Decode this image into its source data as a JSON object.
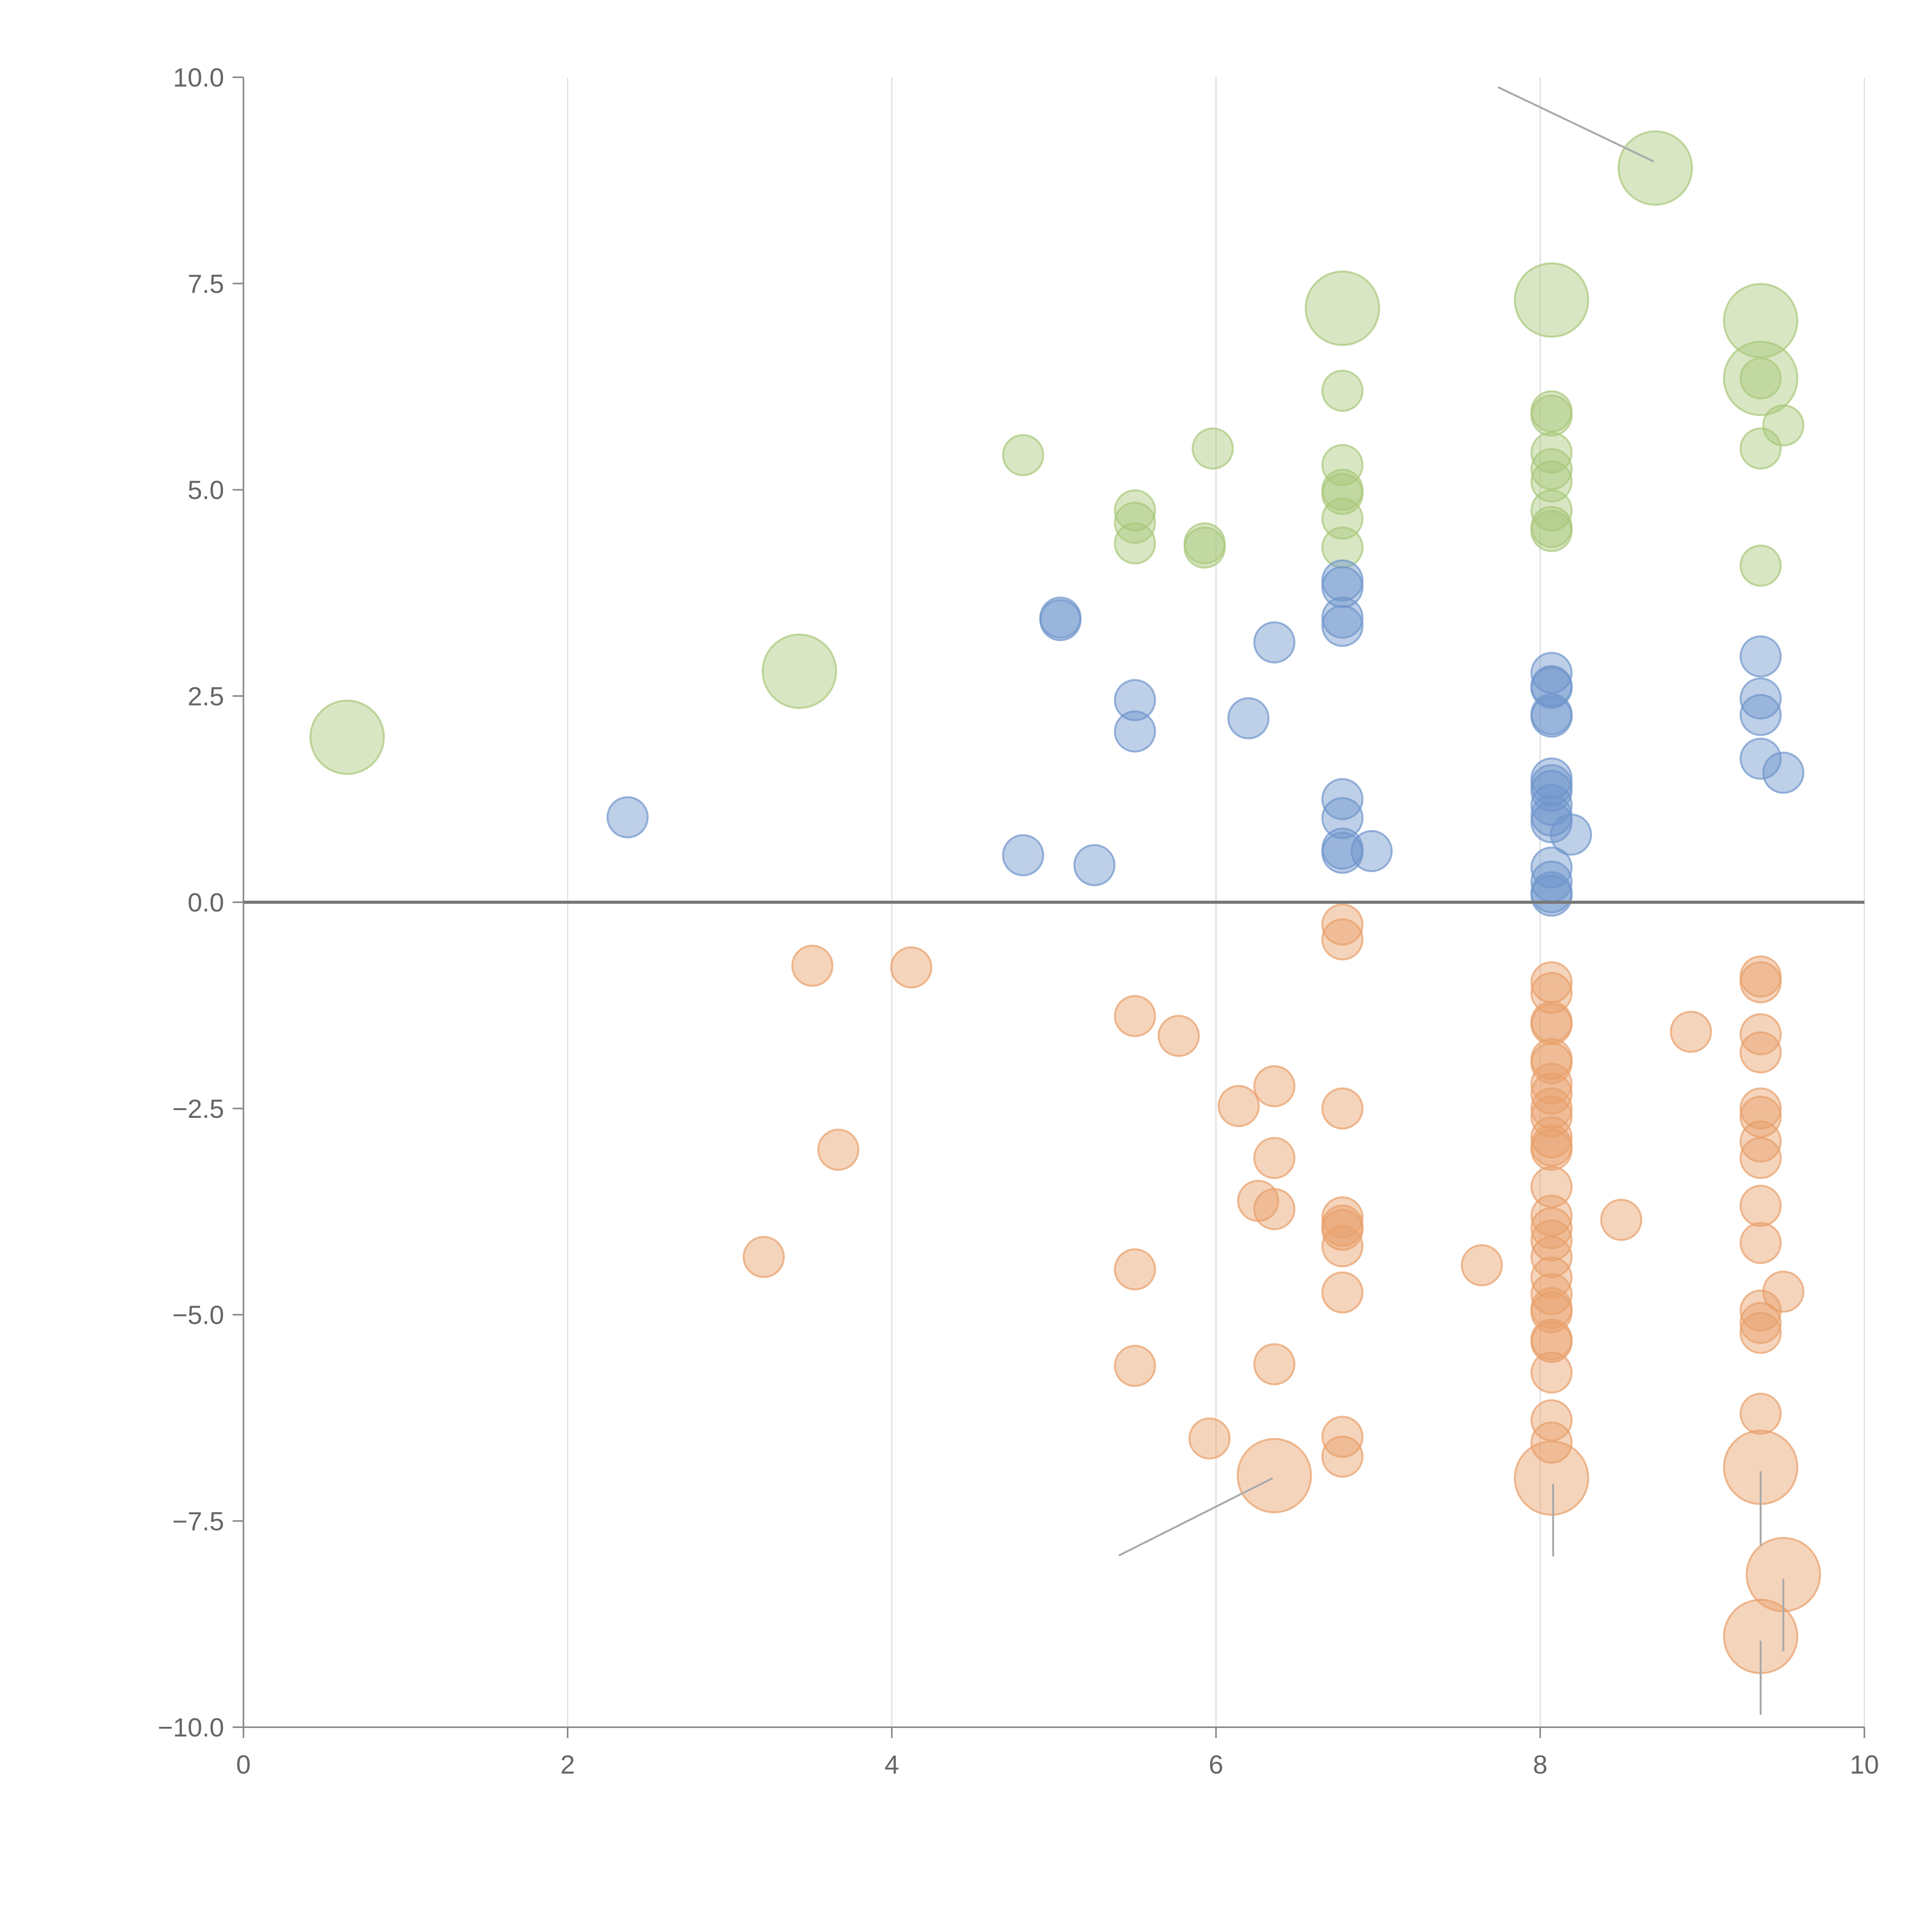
{
  "chart_data": {
    "type": "scatter",
    "title": "",
    "xlabel": "",
    "ylabel": "",
    "xlim": [
      0,
      10
    ],
    "ylim": [
      -10,
      10
    ],
    "grid": "vertical",
    "x_ticks": [
      "0",
      "2",
      "4",
      "6",
      "8",
      "10"
    ],
    "y_ticks": [
      "10.0",
      "7.5",
      "5.0",
      "2.5",
      "0.0",
      "−2.5",
      "−5.0",
      "−7.5",
      "−10.0"
    ],
    "colors": {
      "green": "#a9c77b",
      "blue": "#6f95cc",
      "orange": "#e8a06a"
    },
    "series": [
      {
        "name": "green",
        "color": "#a9c77b",
        "points": [
          {
            "x": 0.64,
            "y": 2.0,
            "s": "large"
          },
          {
            "x": 3.43,
            "y": 2.8,
            "s": "large"
          },
          {
            "x": 4.81,
            "y": 5.42,
            "s": "small"
          },
          {
            "x": 5.5,
            "y": 4.75,
            "s": "small"
          },
          {
            "x": 5.5,
            "y": 4.6,
            "s": "small"
          },
          {
            "x": 5.5,
            "y": 4.35,
            "s": "small"
          },
          {
            "x": 5.93,
            "y": 4.35,
            "s": "small"
          },
          {
            "x": 5.93,
            "y": 4.3,
            "s": "small"
          },
          {
            "x": 5.98,
            "y": 5.5,
            "s": "small"
          },
          {
            "x": 6.78,
            "y": 7.2,
            "s": "large"
          },
          {
            "x": 6.78,
            "y": 6.2,
            "s": "small"
          },
          {
            "x": 6.78,
            "y": 5.3,
            "s": "small"
          },
          {
            "x": 6.78,
            "y": 5.0,
            "s": "small"
          },
          {
            "x": 6.78,
            "y": 4.95,
            "s": "small"
          },
          {
            "x": 6.78,
            "y": 4.65,
            "s": "small"
          },
          {
            "x": 6.78,
            "y": 4.3,
            "s": "small"
          },
          {
            "x": 8.71,
            "y": 8.9,
            "s": "large"
          },
          {
            "x": 8.07,
            "y": 7.3,
            "s": "large"
          },
          {
            "x": 8.07,
            "y": 5.95,
            "s": "small"
          },
          {
            "x": 8.07,
            "y": 5.9,
            "s": "small"
          },
          {
            "x": 8.07,
            "y": 5.45,
            "s": "small"
          },
          {
            "x": 8.07,
            "y": 5.25,
            "s": "small"
          },
          {
            "x": 8.07,
            "y": 5.1,
            "s": "small"
          },
          {
            "x": 8.07,
            "y": 4.75,
            "s": "small"
          },
          {
            "x": 8.07,
            "y": 4.55,
            "s": "small"
          },
          {
            "x": 8.07,
            "y": 4.5,
            "s": "small"
          },
          {
            "x": 9.36,
            "y": 7.05,
            "s": "large"
          },
          {
            "x": 9.36,
            "y": 6.35,
            "s": "large"
          },
          {
            "x": 9.36,
            "y": 6.35,
            "s": "small"
          },
          {
            "x": 9.36,
            "y": 5.5,
            "s": "small"
          },
          {
            "x": 9.5,
            "y": 5.78,
            "s": "small"
          },
          {
            "x": 9.36,
            "y": 4.08,
            "s": "small"
          }
        ]
      },
      {
        "name": "blue",
        "color": "#6f95cc",
        "points": [
          {
            "x": 2.37,
            "y": 1.03,
            "s": "small"
          },
          {
            "x": 4.81,
            "y": 0.57,
            "s": "small"
          },
          {
            "x": 5.04,
            "y": 3.45,
            "s": "small"
          },
          {
            "x": 5.04,
            "y": 3.42,
            "s": "small"
          },
          {
            "x": 5.25,
            "y": 0.45,
            "s": "small"
          },
          {
            "x": 5.5,
            "y": 2.45,
            "s": "small"
          },
          {
            "x": 5.5,
            "y": 2.07,
            "s": "small"
          },
          {
            "x": 6.2,
            "y": 2.23,
            "s": "small"
          },
          {
            "x": 6.36,
            "y": 3.15,
            "s": "small"
          },
          {
            "x": 6.78,
            "y": 3.9,
            "s": "small"
          },
          {
            "x": 6.78,
            "y": 3.82,
            "s": "small"
          },
          {
            "x": 6.78,
            "y": 3.45,
            "s": "small"
          },
          {
            "x": 6.78,
            "y": 3.35,
            "s": "small"
          },
          {
            "x": 6.78,
            "y": 1.25,
            "s": "small"
          },
          {
            "x": 6.78,
            "y": 1.02,
            "s": "small"
          },
          {
            "x": 6.78,
            "y": 0.65,
            "s": "small"
          },
          {
            "x": 6.78,
            "y": 0.6,
            "s": "small"
          },
          {
            "x": 6.96,
            "y": 0.62,
            "s": "small"
          },
          {
            "x": 8.07,
            "y": 2.78,
            "s": "small"
          },
          {
            "x": 8.07,
            "y": 2.62,
            "s": "small"
          },
          {
            "x": 8.07,
            "y": 2.6,
            "s": "small"
          },
          {
            "x": 8.07,
            "y": 2.28,
            "s": "small"
          },
          {
            "x": 8.07,
            "y": 2.25,
            "s": "small"
          },
          {
            "x": 8.07,
            "y": 1.5,
            "s": "small"
          },
          {
            "x": 8.07,
            "y": 1.42,
            "s": "small"
          },
          {
            "x": 8.07,
            "y": 1.35,
            "s": "small"
          },
          {
            "x": 8.07,
            "y": 1.18,
            "s": "small"
          },
          {
            "x": 8.07,
            "y": 1.05,
            "s": "small"
          },
          {
            "x": 8.07,
            "y": 0.97,
            "s": "small"
          },
          {
            "x": 8.19,
            "y": 0.82,
            "s": "small"
          },
          {
            "x": 8.07,
            "y": 0.42,
            "s": "small"
          },
          {
            "x": 8.07,
            "y": 0.25,
            "s": "small"
          },
          {
            "x": 8.07,
            "y": 0.12,
            "s": "small"
          },
          {
            "x": 8.07,
            "y": 0.08,
            "s": "small"
          },
          {
            "x": 9.36,
            "y": 2.98,
            "s": "small"
          },
          {
            "x": 9.36,
            "y": 2.47,
            "s": "small"
          },
          {
            "x": 9.36,
            "y": 2.27,
            "s": "small"
          },
          {
            "x": 9.36,
            "y": 1.74,
            "s": "small"
          },
          {
            "x": 9.5,
            "y": 1.57,
            "s": "small"
          }
        ]
      },
      {
        "name": "orange",
        "color": "#e8a06a",
        "points": [
          {
            "x": 3.21,
            "y": -4.3,
            "s": "small"
          },
          {
            "x": 3.51,
            "y": -0.77,
            "s": "small"
          },
          {
            "x": 3.67,
            "y": -3.0,
            "s": "small"
          },
          {
            "x": 4.12,
            "y": -0.79,
            "s": "small"
          },
          {
            "x": 5.5,
            "y": -1.38,
            "s": "small"
          },
          {
            "x": 5.5,
            "y": -4.45,
            "s": "small"
          },
          {
            "x": 5.5,
            "y": -5.62,
            "s": "small"
          },
          {
            "x": 5.77,
            "y": -1.62,
            "s": "small"
          },
          {
            "x": 5.96,
            "y": -6.5,
            "s": "small"
          },
          {
            "x": 6.14,
            "y": -2.47,
            "s": "small"
          },
          {
            "x": 6.26,
            "y": -3.62,
            "s": "small"
          },
          {
            "x": 6.36,
            "y": -2.23,
            "s": "small"
          },
          {
            "x": 6.36,
            "y": -3.1,
            "s": "small"
          },
          {
            "x": 6.36,
            "y": -3.72,
            "s": "small"
          },
          {
            "x": 6.36,
            "y": -5.6,
            "s": "small"
          },
          {
            "x": 6.36,
            "y": -6.95,
            "s": "large"
          },
          {
            "x": 6.78,
            "y": -0.27,
            "s": "small"
          },
          {
            "x": 6.78,
            "y": -0.45,
            "s": "small"
          },
          {
            "x": 6.78,
            "y": -2.5,
            "s": "small"
          },
          {
            "x": 6.78,
            "y": -3.82,
            "s": "small"
          },
          {
            "x": 6.78,
            "y": -3.92,
            "s": "small"
          },
          {
            "x": 6.78,
            "y": -3.97,
            "s": "small"
          },
          {
            "x": 6.78,
            "y": -4.17,
            "s": "small"
          },
          {
            "x": 6.78,
            "y": -4.73,
            "s": "small"
          },
          {
            "x": 6.78,
            "y": -6.48,
            "s": "small"
          },
          {
            "x": 6.78,
            "y": -6.72,
            "s": "small"
          },
          {
            "x": 7.64,
            "y": -4.4,
            "s": "small"
          },
          {
            "x": 8.07,
            "y": -0.97,
            "s": "small"
          },
          {
            "x": 8.07,
            "y": -1.1,
            "s": "small"
          },
          {
            "x": 8.07,
            "y": -1.45,
            "s": "small"
          },
          {
            "x": 8.07,
            "y": -1.48,
            "s": "small"
          },
          {
            "x": 8.07,
            "y": -1.9,
            "s": "small"
          },
          {
            "x": 8.07,
            "y": -1.95,
            "s": "small"
          },
          {
            "x": 8.07,
            "y": -2.2,
            "s": "small"
          },
          {
            "x": 8.07,
            "y": -2.32,
            "s": "small"
          },
          {
            "x": 8.07,
            "y": -2.5,
            "s": "small"
          },
          {
            "x": 8.07,
            "y": -2.6,
            "s": "small"
          },
          {
            "x": 8.07,
            "y": -2.85,
            "s": "small"
          },
          {
            "x": 8.07,
            "y": -2.95,
            "s": "small"
          },
          {
            "x": 8.07,
            "y": -3.0,
            "s": "small"
          },
          {
            "x": 8.07,
            "y": -3.45,
            "s": "small"
          },
          {
            "x": 8.07,
            "y": -3.8,
            "s": "small"
          },
          {
            "x": 8.07,
            "y": -3.95,
            "s": "small"
          },
          {
            "x": 8.07,
            "y": -4.1,
            "s": "small"
          },
          {
            "x": 8.07,
            "y": -4.3,
            "s": "small"
          },
          {
            "x": 8.07,
            "y": -4.55,
            "s": "small"
          },
          {
            "x": 8.07,
            "y": -4.75,
            "s": "small"
          },
          {
            "x": 8.07,
            "y": -4.92,
            "s": "small"
          },
          {
            "x": 8.07,
            "y": -4.97,
            "s": "small"
          },
          {
            "x": 8.07,
            "y": -5.3,
            "s": "small"
          },
          {
            "x": 8.07,
            "y": -5.33,
            "s": "small"
          },
          {
            "x": 8.07,
            "y": -5.7,
            "s": "small"
          },
          {
            "x": 8.07,
            "y": -6.28,
            "s": "small"
          },
          {
            "x": 8.07,
            "y": -6.55,
            "s": "small"
          },
          {
            "x": 8.07,
            "y": -6.98,
            "s": "large"
          },
          {
            "x": 8.5,
            "y": -3.85,
            "s": "small"
          },
          {
            "x": 8.93,
            "y": -1.57,
            "s": "small"
          },
          {
            "x": 9.36,
            "y": -0.9,
            "s": "small"
          },
          {
            "x": 9.36,
            "y": -0.97,
            "s": "small"
          },
          {
            "x": 9.36,
            "y": -1.6,
            "s": "small"
          },
          {
            "x": 9.36,
            "y": -1.82,
            "s": "small"
          },
          {
            "x": 9.36,
            "y": -2.5,
            "s": "small"
          },
          {
            "x": 9.36,
            "y": -2.6,
            "s": "small"
          },
          {
            "x": 9.36,
            "y": -2.9,
            "s": "small"
          },
          {
            "x": 9.36,
            "y": -3.1,
            "s": "small"
          },
          {
            "x": 9.36,
            "y": -3.68,
            "s": "small"
          },
          {
            "x": 9.36,
            "y": -4.13,
            "s": "small"
          },
          {
            "x": 9.36,
            "y": -4.95,
            "s": "small"
          },
          {
            "x": 9.36,
            "y": -5.1,
            "s": "small"
          },
          {
            "x": 9.36,
            "y": -5.22,
            "s": "small"
          },
          {
            "x": 9.36,
            "y": -6.2,
            "s": "small"
          },
          {
            "x": 9.36,
            "y": -6.85,
            "s": "large"
          },
          {
            "x": 9.5,
            "y": -4.72,
            "s": "small"
          },
          {
            "x": 9.5,
            "y": -8.15,
            "s": "large"
          },
          {
            "x": 9.36,
            "y": -8.9,
            "s": "large"
          }
        ]
      }
    ],
    "leader_lines": [
      {
        "x1": 7.74,
        "y1": 9.88,
        "x2": 8.7,
        "y2": 8.98
      },
      {
        "x1": 5.4,
        "y1": -7.92,
        "x2": 6.35,
        "y2": -6.98
      },
      {
        "x1": 8.08,
        "y1": -7.05,
        "x2": 8.08,
        "y2": -7.93
      },
      {
        "x1": 9.36,
        "y1": -6.9,
        "x2": 9.36,
        "y2": -7.8
      },
      {
        "x1": 9.5,
        "y1": -8.2,
        "x2": 9.5,
        "y2": -9.08
      },
      {
        "x1": 9.36,
        "y1": -8.95,
        "x2": 9.36,
        "y2": -9.85
      }
    ]
  }
}
